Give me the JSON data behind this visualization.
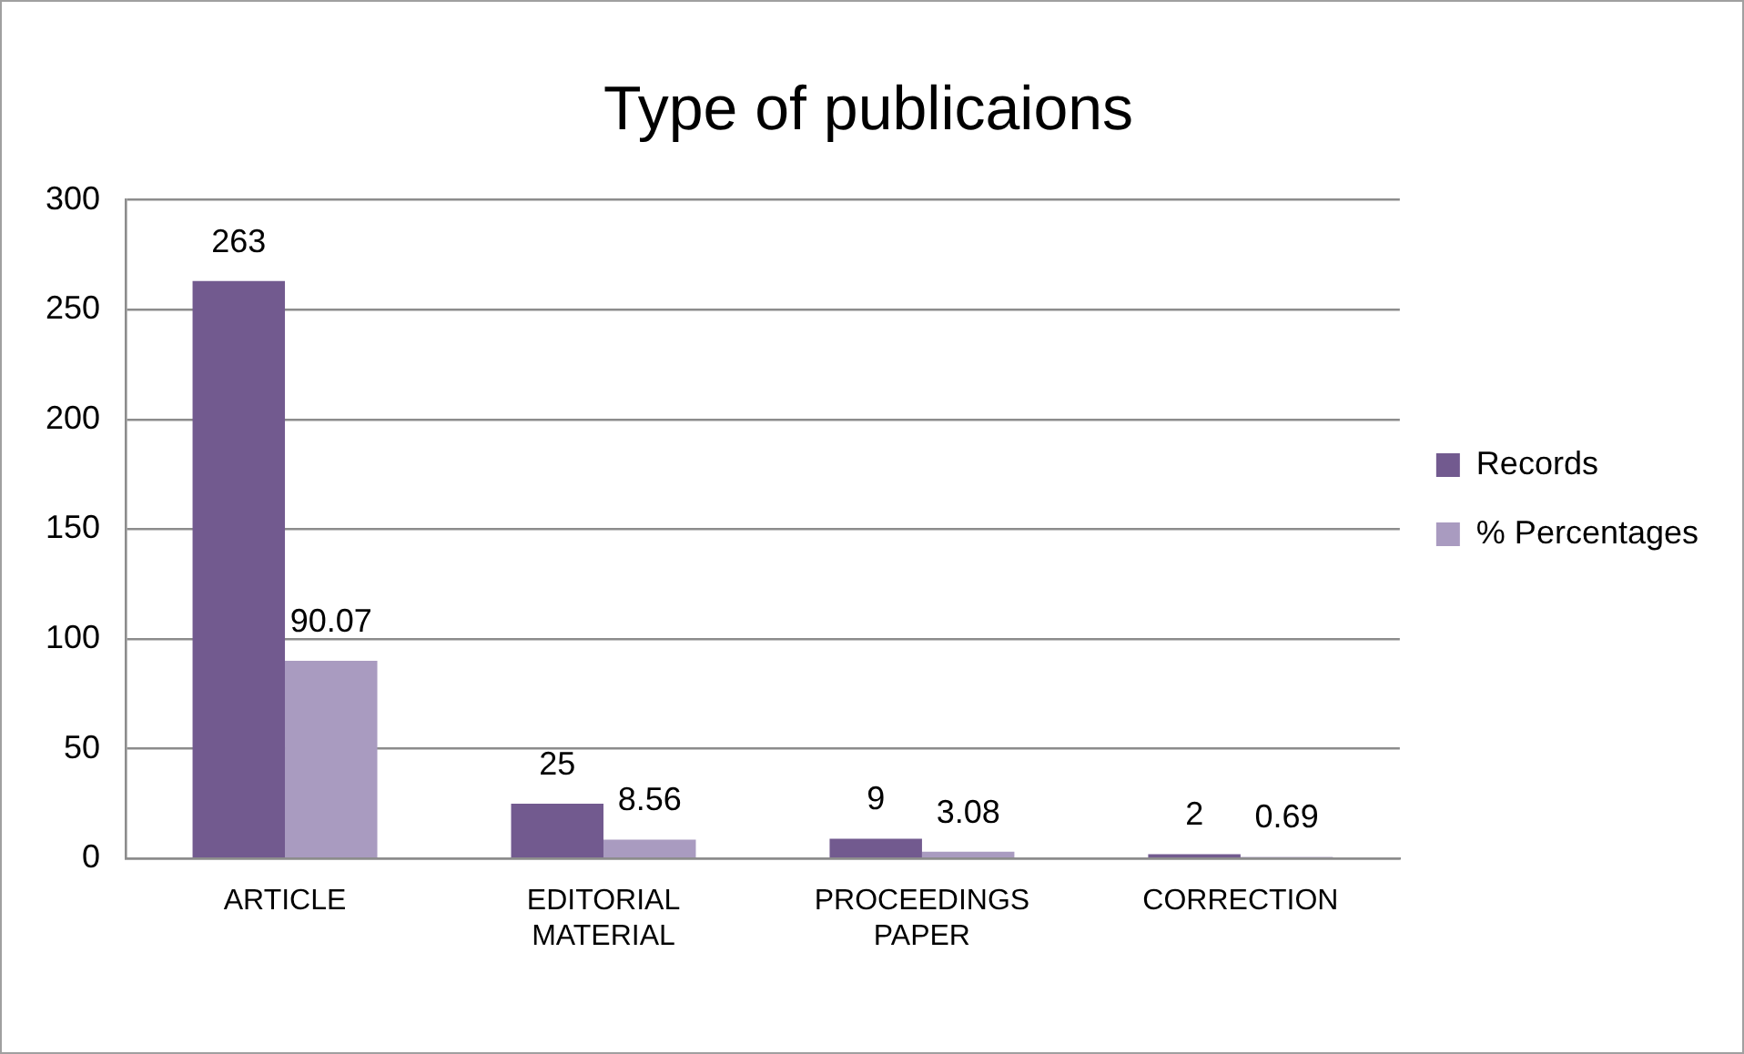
{
  "chart_data": {
    "type": "bar",
    "title": "Type of publicaions",
    "categories": [
      "ARTICLE",
      "EDITORIAL MATERIAL",
      "PROCEEDINGS PAPER",
      "CORRECTION"
    ],
    "series": [
      {
        "name": "Records",
        "color": "#725a8f",
        "values": [
          263,
          25,
          9,
          2
        ]
      },
      {
        "name": "% Percentages",
        "color": "#a99bc0",
        "values": [
          90.07,
          8.56,
          3.08,
          0.69
        ]
      }
    ],
    "ylim": [
      0,
      300
    ],
    "yticks": [
      0,
      50,
      100,
      150,
      200,
      250,
      300
    ],
    "grid": "y",
    "legend": "right",
    "data_labels": true
  }
}
